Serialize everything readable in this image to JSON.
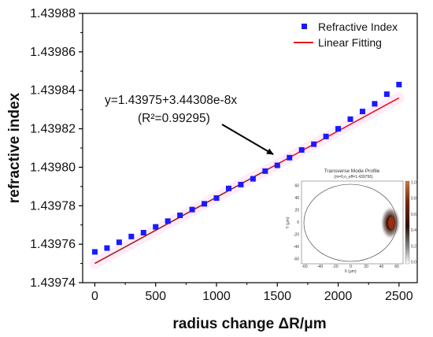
{
  "chart_data": {
    "type": "scatter",
    "xlabel": "radius change ΔR/μm",
    "ylabel": "refractive index",
    "xlim": [
      -100,
      2650
    ],
    "ylim": [
      1.43974,
      1.43988
    ],
    "xticks": [
      0,
      500,
      1000,
      1500,
      2000,
      2500
    ],
    "yticks": [
      "1.43974",
      "1.43976",
      "1.43978",
      "1.43980",
      "1.43982",
      "1.43984",
      "1.43986",
      "1.43988"
    ],
    "legend_position": "top-right",
    "series": [
      {
        "name": "Refractive Index",
        "marker": "square",
        "color": "#1a1aff",
        "x": [
          0,
          100,
          200,
          300,
          400,
          500,
          600,
          700,
          800,
          900,
          1000,
          1100,
          1200,
          1300,
          1400,
          1500,
          1600,
          1700,
          1800,
          1900,
          2000,
          2100,
          2200,
          2300,
          2400,
          2500
        ],
        "y": [
          1.439756,
          1.439758,
          1.439761,
          1.439764,
          1.439766,
          1.439769,
          1.439772,
          1.439775,
          1.439778,
          1.439781,
          1.439784,
          1.439789,
          1.439791,
          1.439794,
          1.439798,
          1.439801,
          1.439805,
          1.439809,
          1.439812,
          1.439816,
          1.43982,
          1.439825,
          1.439829,
          1.439833,
          1.439838,
          1.439843
        ]
      },
      {
        "name": "Linear Fitting",
        "type": "line",
        "color": "#e8141e",
        "intercept": 1.43975,
        "slope": 3.44308e-08
      }
    ],
    "annotation": {
      "line1": "y=1.43975+3.44308e-8x",
      "line2": "(R²=0.99295)"
    },
    "inset": {
      "title": "Transverse Mode Profile",
      "subtitle": "(m=0,n_eff=1.439756)",
      "xlabel": "X (μm)",
      "ylabel": "Y (μm)",
      "xticks": [
        "-60",
        "-40",
        "-20",
        "0",
        "20",
        "40",
        "60"
      ],
      "yticks": [
        "60",
        "40",
        "20",
        "0",
        "-20",
        "-40",
        "-60"
      ],
      "colorbar_ticks": [
        "1.0",
        "0.8",
        "0.6",
        "0.4",
        "0.2",
        "0.0"
      ]
    }
  },
  "colors": {
    "points": "#1a1aff",
    "fit_line": "#e8141e",
    "trend_overlay": "#8b2a1a",
    "arrow": "#000000"
  }
}
